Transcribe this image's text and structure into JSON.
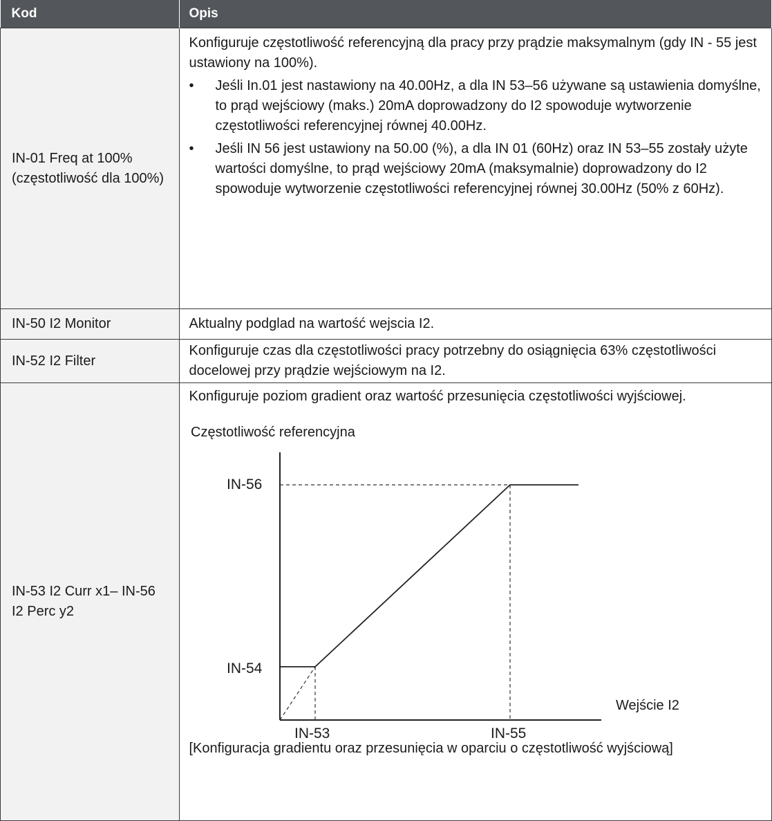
{
  "table": {
    "header": {
      "code": "Kod",
      "desc": "Opis"
    },
    "rows": [
      {
        "code": "IN-01 Freq at 100% (częstotliwość dla 100%)",
        "desc": "Konfiguruje częstotliwość referencyjną dla pracy przy prądzie maksymalnym (gdy IN - 55 jest ustawiony na 100%).",
        "bullets": [
          "Jeśli In.01 jest nastawiony na 40.00Hz, a dla IN 53–56 używane są ustawienia domyślne, to prąd wejściowy (maks.) 20mA doprowadzony do I2 spowoduje wytworzenie częstotliwości referencyjnej równej 40.00Hz.",
          "Jeśli IN 56 jest ustawiony na 50.00 (%), a dla IN 01 (60Hz) oraz IN 53–55 zostały użyte wartości domyślne, to prąd wejściowy 20mA (maksymalnie) doprowadzony do I2 spowoduje wytworzenie częstotliwości referencyjnej równej 30.00Hz (50% z 60Hz)."
        ]
      },
      {
        "code": "IN-50 I2 Monitor",
        "desc": "Aktualny podglad na wartość wejscia I2."
      },
      {
        "code": "IN-52 I2 Filter",
        "desc": "Konfiguruje czas dla częstotliwości pracy potrzebny do osiągnięcia 63% częstotliwości docelowej przy prądzie wejściowym na I2."
      },
      {
        "code": "IN-53 I2 Curr x1– IN-56 I2 Perc y2",
        "desc": "Konfiguruje poziom gradient oraz wartość przesunięcia częstotliwości wyjściowej.",
        "caption": "[Konfiguracja gradientu oraz przesunięcia w oparciu o częstotliwość wyjściową]"
      }
    ]
  },
  "bullet_glyph": "•",
  "chart_data": {
    "type": "line",
    "ylabel": "Częstotliwość referencyjna",
    "xlabel": "Wejście I2",
    "x_ticks": [
      "IN-53",
      "IN-55"
    ],
    "y_ticks": [
      "IN-54",
      "IN-56"
    ],
    "series": [
      {
        "style": "solid",
        "points": [
          [
            "0",
            "IN-54"
          ],
          [
            "IN-53",
            "IN-54"
          ],
          [
            "IN-55",
            "IN-56"
          ],
          [
            "end",
            "IN-56"
          ]
        ]
      },
      {
        "style": "dashed",
        "points": [
          [
            "0",
            "0"
          ],
          [
            "IN-53",
            "IN-54"
          ]
        ]
      }
    ]
  }
}
